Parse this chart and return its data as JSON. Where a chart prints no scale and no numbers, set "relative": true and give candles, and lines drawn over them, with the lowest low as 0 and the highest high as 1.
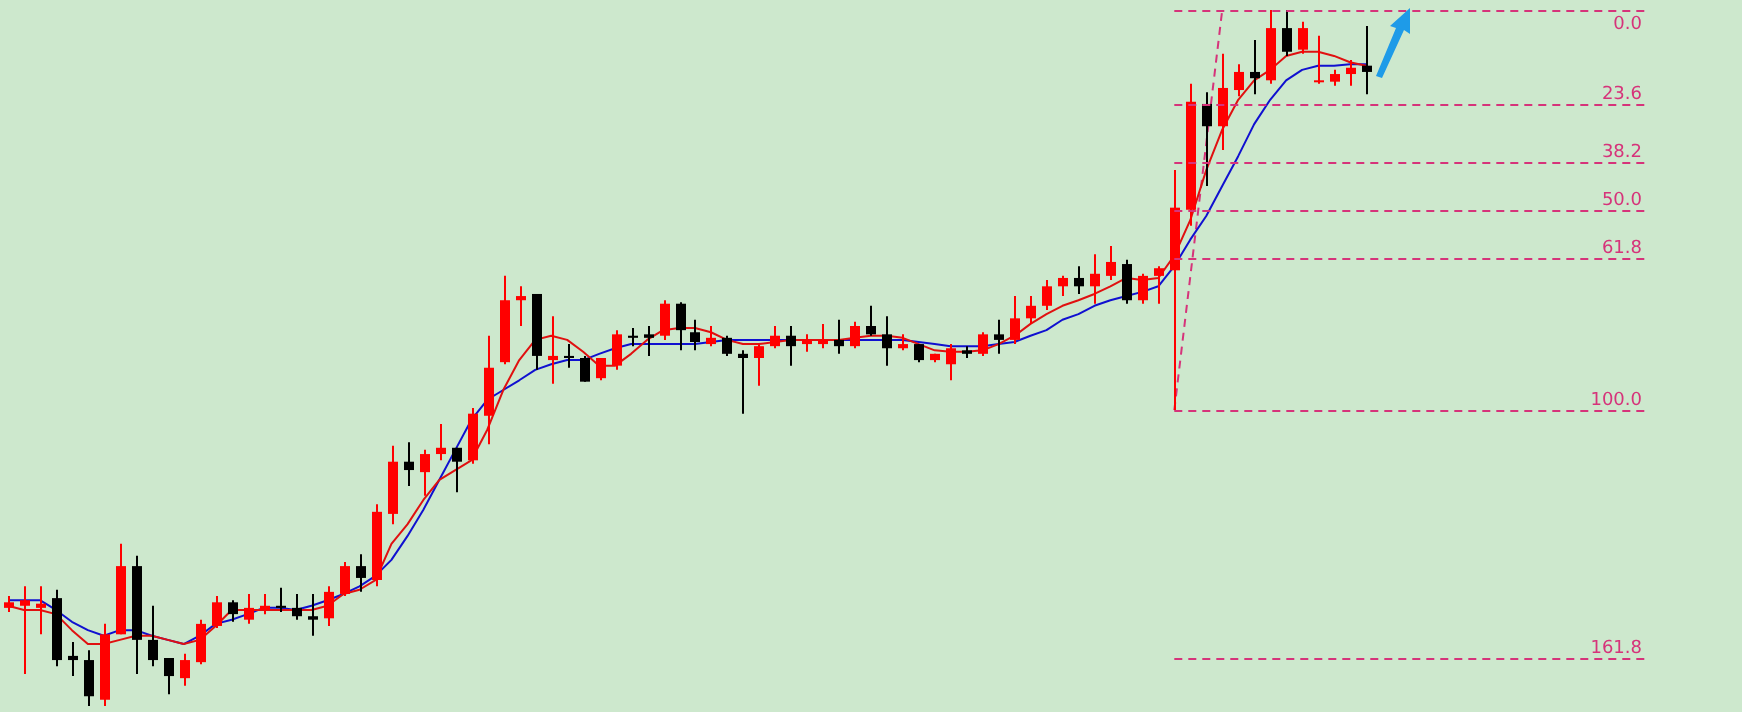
{
  "chart_data": {
    "type": "candlestick",
    "relative": true,
    "categories": [
      null,
      null,
      null,
      null,
      null,
      null,
      null,
      null,
      null,
      null,
      null,
      null,
      null,
      null,
      null,
      null,
      null,
      null,
      null,
      null,
      null,
      null,
      null,
      null,
      null,
      null,
      null,
      null,
      null,
      null,
      null,
      null,
      null,
      null,
      null,
      null,
      null,
      null,
      null,
      null,
      null,
      null,
      null,
      null,
      null,
      null,
      null,
      null,
      null,
      null,
      null,
      null,
      null,
      null,
      null,
      null,
      null,
      null,
      null,
      null,
      null,
      null,
      null,
      null,
      null,
      null,
      null,
      null,
      null,
      null,
      null,
      null,
      null,
      null,
      null,
      null,
      null,
      null,
      null,
      null,
      null,
      null,
      null,
      null,
      null,
      null
    ],
    "ohlc": [
      [
        0.141,
        0.158,
        0.135,
        0.149
      ],
      [
        0.144,
        0.172,
        0.046,
        0.152
      ],
      [
        0.141,
        0.172,
        0.103,
        0.147
      ],
      [
        0.155,
        0.167,
        0.057,
        0.066
      ],
      [
        0.072,
        0.092,
        0.043,
        0.066
      ],
      [
        0.066,
        0.08,
        0,
        0.014
      ],
      [
        0.009,
        0.118,
        0,
        0.103
      ],
      [
        0.103,
        0.233,
        0.103,
        0.201
      ],
      [
        0.201,
        0.216,
        0.046,
        0.095
      ],
      [
        0.095,
        0.144,
        0.057,
        0.066
      ],
      [
        0.069,
        0.069,
        0.017,
        0.043
      ],
      [
        0.04,
        0.075,
        0.029,
        0.066
      ],
      [
        0.063,
        0.124,
        0.06,
        0.118
      ],
      [
        0.115,
        0.158,
        0.112,
        0.149
      ],
      [
        0.149,
        0.152,
        0.121,
        0.132
      ],
      [
        0.124,
        0.161,
        0.118,
        0.141
      ],
      [
        0.138,
        0.161,
        0.132,
        0.144
      ],
      [
        0.144,
        0.17,
        0.135,
        0.141
      ],
      [
        0.141,
        0.161,
        0.124,
        0.129
      ],
      [
        0.129,
        0.161,
        0.101,
        0.124
      ],
      [
        0.126,
        0.172,
        0.115,
        0.164
      ],
      [
        0.161,
        0.207,
        0.158,
        0.201
      ],
      [
        0.201,
        0.218,
        0.164,
        0.184
      ],
      [
        0.181,
        0.29,
        0.172,
        0.279
      ],
      [
        0.276,
        0.374,
        0.261,
        0.351
      ],
      [
        0.351,
        0.379,
        0.316,
        0.339
      ],
      [
        0.336,
        0.368,
        0.302,
        0.362
      ],
      [
        0.362,
        0.405,
        0.353,
        0.371
      ],
      [
        0.371,
        0.371,
        0.307,
        0.351
      ],
      [
        0.353,
        0.428,
        0.348,
        0.42
      ],
      [
        0.417,
        0.532,
        0.376,
        0.486
      ],
      [
        0.494,
        0.618,
        0.491,
        0.583
      ],
      [
        0.583,
        0.603,
        0.546,
        0.589
      ],
      [
        0.592,
        0.592,
        0.483,
        0.503
      ],
      [
        0.497,
        0.56,
        0.463,
        0.503
      ],
      [
        0.503,
        0.52,
        0.486,
        0.5
      ],
      [
        0.5,
        0.503,
        0.466,
        0.466
      ],
      [
        0.471,
        0.5,
        0.468,
        0.5
      ],
      [
        0.489,
        0.54,
        0.483,
        0.534
      ],
      [
        0.532,
        0.543,
        0.517,
        0.529
      ],
      [
        0.534,
        0.546,
        0.503,
        0.529
      ],
      [
        0.532,
        0.583,
        0.526,
        0.578
      ],
      [
        0.578,
        0.58,
        0.511,
        0.54
      ],
      [
        0.537,
        0.555,
        0.511,
        0.523
      ],
      [
        0.52,
        0.546,
        0.517,
        0.529
      ],
      [
        0.529,
        0.532,
        0.503,
        0.506
      ],
      [
        0.506,
        0.511,
        0.42,
        0.5
      ],
      [
        0.5,
        0.52,
        0.46,
        0.517
      ],
      [
        0.517,
        0.546,
        0.514,
        0.532
      ],
      [
        0.532,
        0.546,
        0.489,
        0.517
      ],
      [
        0.52,
        0.534,
        0.509,
        0.526
      ],
      [
        0.52,
        0.549,
        0.514,
        0.526
      ],
      [
        0.526,
        0.555,
        0.506,
        0.517
      ],
      [
        0.517,
        0.552,
        0.514,
        0.546
      ],
      [
        0.546,
        0.575,
        0.532,
        0.534
      ],
      [
        0.534,
        0.56,
        0.489,
        0.514
      ],
      [
        0.514,
        0.534,
        0.511,
        0.52
      ],
      [
        0.52,
        0.52,
        0.494,
        0.497
      ],
      [
        0.497,
        0.506,
        0.494,
        0.506
      ],
      [
        0.491,
        0.52,
        0.468,
        0.514
      ],
      [
        0.511,
        0.517,
        0.5,
        0.506
      ],
      [
        0.506,
        0.537,
        0.503,
        0.534
      ],
      [
        0.534,
        0.555,
        0.506,
        0.526
      ],
      [
        0.526,
        0.589,
        0.52,
        0.557
      ],
      [
        0.557,
        0.589,
        0.549,
        0.575
      ],
      [
        0.575,
        0.612,
        0.569,
        0.603
      ],
      [
        0.603,
        0.618,
        0.589,
        0.615
      ],
      [
        0.615,
        0.632,
        0.592,
        0.603
      ],
      [
        0.603,
        0.649,
        0.578,
        0.621
      ],
      [
        0.618,
        0.661,
        0.612,
        0.638
      ],
      [
        0.635,
        0.641,
        0.578,
        0.583
      ],
      [
        0.583,
        0.621,
        0.578,
        0.618
      ],
      [
        0.618,
        0.632,
        0.578,
        0.629
      ],
      [
        0.626,
        0.77,
        0.425,
        0.716
      ],
      [
        0.713,
        0.894,
        0.69,
        0.868
      ],
      [
        0.865,
        0.882,
        0.747,
        0.833
      ],
      [
        0.833,
        0.937,
        0.799,
        0.888
      ],
      [
        0.885,
        0.922,
        0.876,
        0.911
      ],
      [
        0.911,
        0.957,
        0.879,
        0.902
      ],
      [
        0.899,
        1,
        0.894,
        0.974
      ],
      [
        0.974,
        1,
        0.934,
        0.94
      ],
      [
        0.943,
        0.983,
        0.937,
        0.974
      ],
      [
        0.897,
        0.963,
        0.894,
        0.899
      ],
      [
        0.897,
        0.914,
        0.891,
        0.908
      ],
      [
        0.908,
        0.928,
        0.891,
        0.917
      ],
      [
        0.92,
        0.977,
        0.879,
        0.911
      ]
    ],
    "colors": [
      "#ff0000",
      "#ff0000",
      "#ff0000",
      "#000000",
      "#000000",
      "#000000",
      "#ff0000",
      "#ff0000",
      "#000000",
      "#000000",
      "#000000",
      "#ff0000",
      "#ff0000",
      "#ff0000",
      "#000000",
      "#ff0000",
      "#ff0000",
      "#000000",
      "#000000",
      "#000000",
      "#ff0000",
      "#ff0000",
      "#000000",
      "#ff0000",
      "#ff0000",
      "#000000",
      "#ff0000",
      "#ff0000",
      "#000000",
      "#ff0000",
      "#ff0000",
      "#ff0000",
      "#ff0000",
      "#000000",
      "#ff0000",
      "#000000",
      "#000000",
      "#ff0000",
      "#ff0000",
      "#000000",
      "#000000",
      "#ff0000",
      "#000000",
      "#000000",
      "#ff0000",
      "#000000",
      "#000000",
      "#ff0000",
      "#ff0000",
      "#000000",
      "#ff0000",
      "#ff0000",
      "#000000",
      "#ff0000",
      "#000000",
      "#000000",
      "#ff0000",
      "#000000",
      "#ff0000",
      "#ff0000",
      "#000000",
      "#ff0000",
      "#000000",
      "#ff0000",
      "#ff0000",
      "#ff0000",
      "#ff0000",
      "#000000",
      "#ff0000",
      "#ff0000",
      "#000000",
      "#ff0000",
      "#ff0000",
      "#ff0000",
      "#ff0000",
      "#000000",
      "#ff0000",
      "#ff0000",
      "#000000",
      "#ff0000",
      "#000000",
      "#ff0000",
      "#ff0000",
      "#ff0000",
      "#ff0000",
      "#000000"
    ],
    "series": [
      {
        "type": "line",
        "color": "#e01010",
        "values": [
          0.144,
          0.138,
          0.138,
          0.132,
          0.109,
          0.089,
          0.089,
          0.095,
          0.101,
          0.101,
          0.095,
          0.089,
          0.095,
          0.115,
          0.138,
          0.138,
          0.138,
          0.138,
          0.138,
          0.138,
          0.144,
          0.161,
          0.167,
          0.181,
          0.233,
          0.261,
          0.296,
          0.325,
          0.339,
          0.353,
          0.397,
          0.454,
          0.497,
          0.526,
          0.532,
          0.526,
          0.509,
          0.489,
          0.489,
          0.506,
          0.526,
          0.54,
          0.543,
          0.543,
          0.537,
          0.526,
          0.52,
          0.52,
          0.523,
          0.526,
          0.526,
          0.526,
          0.526,
          0.529,
          0.532,
          0.532,
          0.529,
          0.52,
          0.511,
          0.509,
          0.509,
          0.511,
          0.52,
          0.532,
          0.549,
          0.563,
          0.575,
          0.583,
          0.592,
          0.603,
          0.615,
          0.612,
          0.615,
          0.647,
          0.698,
          0.77,
          0.828,
          0.871,
          0.899,
          0.914,
          0.934,
          0.94,
          0.94,
          0.934,
          0.925,
          0.92
        ]
      },
      {
        "type": "line",
        "color": "#1010d0",
        "values": [
          0.152,
          0.152,
          0.152,
          0.138,
          0.121,
          0.109,
          0.101,
          0.109,
          0.109,
          0.101,
          0.095,
          0.089,
          0.101,
          0.118,
          0.124,
          0.132,
          0.141,
          0.141,
          0.138,
          0.144,
          0.152,
          0.161,
          0.172,
          0.187,
          0.21,
          0.244,
          0.282,
          0.325,
          0.368,
          0.411,
          0.44,
          0.454,
          0.468,
          0.483,
          0.491,
          0.497,
          0.497,
          0.506,
          0.514,
          0.52,
          0.52,
          0.52,
          0.52,
          0.52,
          0.523,
          0.526,
          0.526,
          0.526,
          0.526,
          0.526,
          0.526,
          0.526,
          0.526,
          0.526,
          0.526,
          0.526,
          0.526,
          0.523,
          0.52,
          0.517,
          0.517,
          0.517,
          0.52,
          0.523,
          0.532,
          0.54,
          0.555,
          0.563,
          0.575,
          0.583,
          0.589,
          0.595,
          0.603,
          0.632,
          0.67,
          0.704,
          0.747,
          0.79,
          0.836,
          0.871,
          0.899,
          0.914,
          0.92,
          0.92,
          0.922,
          0.922
        ]
      },
      {
        "type": "line",
        "color": "#d6337a",
        "line_style": "dashed",
        "values": [
          null,
          null,
          null,
          null,
          null,
          null,
          null,
          null,
          null,
          null,
          null,
          null,
          null,
          null,
          null,
          null,
          null,
          null,
          null,
          null,
          null,
          null,
          null,
          null,
          null,
          null,
          null,
          null,
          null,
          null,
          null,
          null,
          null,
          null,
          null,
          null,
          null,
          null,
          null,
          null,
          null,
          null,
          null,
          null,
          null,
          null,
          null,
          null,
          null,
          null,
          null,
          null,
          null,
          null,
          null,
          null,
          null,
          null,
          null,
          null,
          null,
          null,
          null,
          null,
          null,
          null,
          null,
          null,
          null,
          null,
          null,
          null,
          null,
          0.425,
          null,
          null,
          1,
          null,
          null,
          null,
          null,
          null,
          null,
          null,
          null,
          null
        ]
      }
    ],
    "ref_lines": [
      {
        "axis": "y",
        "value": 1,
        "color": "#d6337a",
        "line_style": "dashed"
      },
      {
        "axis": "y",
        "value": 0.864,
        "color": "#d6337a",
        "line_style": "dashed"
      },
      {
        "axis": "y",
        "value": 0.781,
        "color": "#d6337a",
        "line_style": "dashed"
      },
      {
        "axis": "y",
        "value": 0.713,
        "color": "#d6337a",
        "line_style": "dashed"
      },
      {
        "axis": "y",
        "value": 0.645,
        "color": "#d6337a",
        "line_style": "dashed"
      },
      {
        "axis": "y",
        "value": 0.425,
        "color": "#d6337a",
        "line_style": "dashed"
      },
      {
        "axis": "y",
        "value": 0.07,
        "color": "#d6337a",
        "line_style": "dashed"
      }
    ],
    "annotations": [
      {
        "text": "0.0",
        "y": 1
      },
      {
        "text": "23.6",
        "y": 0.864
      },
      {
        "text": "38.2",
        "y": 0.781
      },
      {
        "text": "50.0",
        "y": 0.713
      },
      {
        "text": "61.8",
        "y": 0.645
      },
      {
        "text": "100.0",
        "y": 0.425
      },
      {
        "text": "161.8",
        "y": 0.07
      }
    ],
    "tick_labels": false,
    "grid": false,
    "legend": false,
    "marker": "none"
  }
}
